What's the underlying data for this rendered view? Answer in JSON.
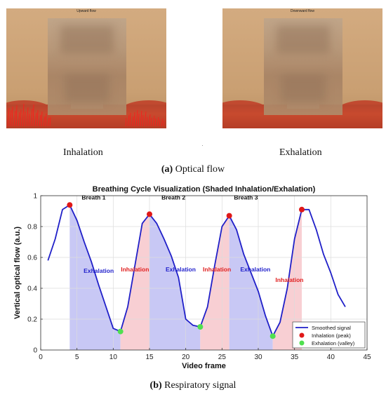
{
  "figure_a": {
    "left_title": "Upward flow",
    "right_title": "Downward flow",
    "left_caption": "Inhalation",
    "right_caption": "Exhalation",
    "caption_label": "(a)",
    "caption_text": "Optical flow"
  },
  "figure_b": {
    "caption_label": "(b)",
    "caption_text": "Respiratory signal"
  },
  "chart_data": {
    "type": "line",
    "title": "Breathing Cycle Visualization (Shaded Inhalation/Exhalation)",
    "xlabel": "Video frame",
    "ylabel": "Vertical optical flow (a.u.)",
    "xlim": [
      0,
      45
    ],
    "ylim": [
      0,
      1
    ],
    "xticks": [
      0,
      5,
      10,
      15,
      20,
      25,
      30,
      35,
      40,
      45
    ],
    "yticks": [
      0,
      0.2,
      0.4,
      0.6,
      0.8,
      1
    ],
    "grid": true,
    "legend_position": "bottom-right",
    "series": [
      {
        "name": "Smoothed signal",
        "color": "#1f1fc8",
        "x": [
          1,
          2,
          3,
          4,
          5,
          6,
          7,
          8,
          9,
          10,
          11,
          12,
          13,
          14,
          15,
          16,
          17,
          18,
          19,
          20,
          21,
          22,
          23,
          24,
          25,
          26,
          27,
          28,
          29,
          30,
          31,
          32,
          33,
          34,
          35,
          36,
          37,
          38,
          39,
          40,
          41,
          42
        ],
        "y": [
          0.58,
          0.72,
          0.91,
          0.94,
          0.84,
          0.7,
          0.57,
          0.42,
          0.28,
          0.14,
          0.12,
          0.28,
          0.55,
          0.82,
          0.88,
          0.82,
          0.72,
          0.61,
          0.47,
          0.2,
          0.16,
          0.15,
          0.28,
          0.55,
          0.8,
          0.87,
          0.78,
          0.62,
          0.5,
          0.38,
          0.22,
          0.09,
          0.18,
          0.4,
          0.72,
          0.91,
          0.91,
          0.78,
          0.62,
          0.5,
          0.36,
          0.28
        ]
      }
    ],
    "peaks": {
      "name": "Inhalation (peak)",
      "color": "#e01818",
      "points": [
        [
          4,
          0.94
        ],
        [
          15,
          0.88
        ],
        [
          26,
          0.87
        ],
        [
          36,
          0.91
        ]
      ]
    },
    "valleys": {
      "name": "Exhalation (valley)",
      "color": "#4fe04f",
      "points": [
        [
          11,
          0.12
        ],
        [
          22,
          0.15
        ],
        [
          32,
          0.09
        ]
      ]
    },
    "shaded_regions": [
      {
        "type": "exhalation",
        "x0": 4,
        "x1": 11
      },
      {
        "type": "inhalation",
        "x0": 11,
        "x1": 15
      },
      {
        "type": "exhalation",
        "x0": 15,
        "x1": 22
      },
      {
        "type": "inhalation",
        "x0": 22,
        "x1": 26
      },
      {
        "type": "exhalation",
        "x0": 26,
        "x1": 32
      },
      {
        "type": "inhalation",
        "x0": 32,
        "x1": 36
      }
    ],
    "shade_colors": {
      "exhalation": "#c8c8f5",
      "inhalation": "#f8cfd3"
    },
    "annotations": [
      {
        "text": "Breath 1",
        "x": 7.3,
        "y": 0.975,
        "color": "#111111"
      },
      {
        "text": "Breath 2",
        "x": 18.3,
        "y": 0.975,
        "color": "#111111"
      },
      {
        "text": "Breath 3",
        "x": 28.3,
        "y": 0.975,
        "color": "#111111"
      },
      {
        "text": "Exhalation",
        "x": 8,
        "y": 0.5,
        "color": "#2222cc"
      },
      {
        "text": "Inhalation",
        "x": 13,
        "y": 0.51,
        "color": "#e02020"
      },
      {
        "text": "Exhalation",
        "x": 19.3,
        "y": 0.51,
        "color": "#2222cc"
      },
      {
        "text": "Inhalation",
        "x": 24.3,
        "y": 0.51,
        "color": "#e02020"
      },
      {
        "text": "Exhalation",
        "x": 29.6,
        "y": 0.51,
        "color": "#2222cc"
      },
      {
        "text": "Inhalation",
        "x": 34.3,
        "y": 0.44,
        "color": "#e02020"
      }
    ]
  }
}
